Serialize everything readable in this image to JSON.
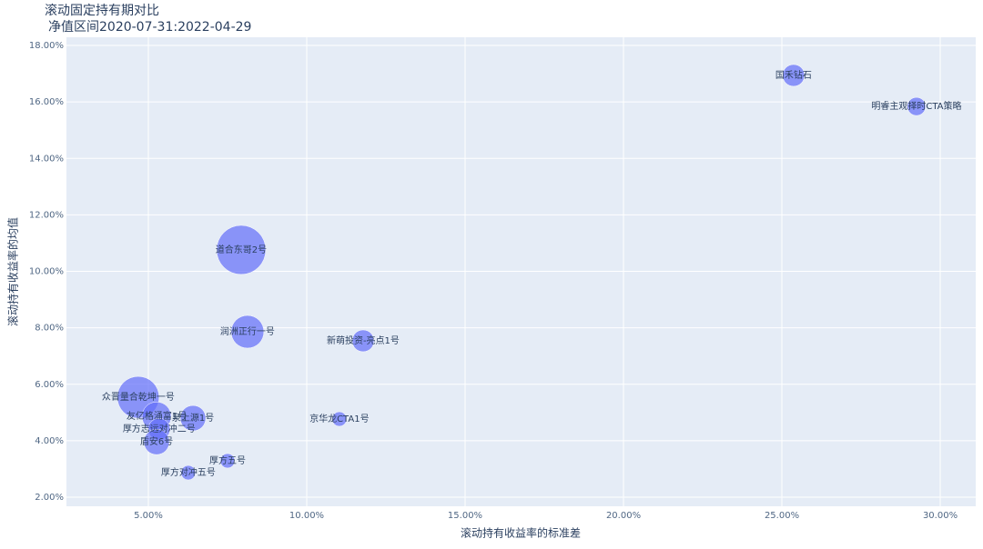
{
  "chart_data": {
    "type": "scatter",
    "title": "滚动固定持有期对比",
    "subtitle": "净值区间2020-07-31:2022-04-29",
    "x_label": "滚动持有收益率的标准差",
    "y_label": "滚动持有收益率的均值",
    "color": "#636efa",
    "grid": true,
    "labels": [
      "国禾钻石",
      "明睿主观择时CTA策略",
      "道合东哥2号",
      "润洲正行一号",
      "新萌投资-亮点1号",
      "众晋量合乾坤一号",
      "京华龙CTA1号",
      "友亿格涌富1号",
      "泉上源1号",
      "厚方志远对冲二号",
      "盾安6号",
      "厚方五号",
      "厚方对冲五号"
    ],
    "x": [
      25.37,
      29.25,
      7.93,
      8.13,
      11.78,
      4.68,
      11.03,
      5.26,
      6.41,
      5.34,
      5.26,
      7.5,
      6.26
    ],
    "values": [
      16.94,
      15.84,
      10.76,
      7.86,
      7.54,
      5.54,
      4.77,
      4.86,
      4.8,
      4.41,
      3.96,
      3.29,
      2.87
    ],
    "sizes": [
      12,
      10,
      27,
      18,
      12,
      23,
      8,
      16,
      14,
      12,
      14,
      8,
      8
    ],
    "xlim": [
      2.414,
      31.12
    ],
    "ylim": [
      1.68,
      18.29
    ],
    "xticks": [
      {
        "value": 5,
        "label": "5.00%"
      },
      {
        "value": 10,
        "label": "10.00%"
      },
      {
        "value": 15,
        "label": "15.00%"
      },
      {
        "value": 20,
        "label": "20.00%"
      },
      {
        "value": 25,
        "label": "25.00%"
      },
      {
        "value": 30,
        "label": "30.00%"
      }
    ],
    "yticks": [
      {
        "value": 2,
        "label": "2.00%"
      },
      {
        "value": 4,
        "label": "4.00%"
      },
      {
        "value": 6,
        "label": "6.00%"
      },
      {
        "value": 8,
        "label": "8.00%"
      },
      {
        "value": 10,
        "label": "10.00%"
      },
      {
        "value": 12,
        "label": "12.00%"
      },
      {
        "value": 14,
        "label": "14.00%"
      },
      {
        "value": 16,
        "label": "16.00%"
      },
      {
        "value": 18,
        "label": "18.00%"
      }
    ]
  }
}
